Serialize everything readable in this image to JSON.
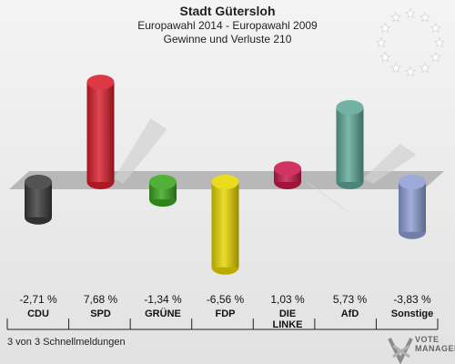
{
  "header": {
    "title": "Stadt Gütersloh",
    "subtitle1": "Europawahl 2014 - Europawahl 2009",
    "subtitle2": "Gewinne und Verluste 210"
  },
  "footer": {
    "status": "3 von 3 Schnellmeldungen",
    "logo_line1": "VOTE",
    "logo_line2": "MANAGER"
  },
  "chart_data": {
    "type": "bar",
    "categories": [
      "CDU",
      "SPD",
      "GRÜNE",
      "FDP",
      "DIE LINKE",
      "AfD",
      "Sonstige"
    ],
    "category_labels": [
      [
        "CDU"
      ],
      [
        "SPD"
      ],
      [
        "GRÜNE"
      ],
      [
        "FDP"
      ],
      [
        "DIE",
        "LINKE"
      ],
      [
        "AfD"
      ],
      [
        "Sonstige"
      ]
    ],
    "values": [
      -2.71,
      7.68,
      -1.34,
      -6.56,
      1.03,
      5.73,
      -3.83
    ],
    "value_labels": [
      "-2,71 %",
      "7,68 %",
      "-1,34 %",
      "-6,56 %",
      "1,03 %",
      "5,73 %",
      "-3,83 %"
    ],
    "colors": [
      "#3c3c3c",
      "#d81e2c",
      "#3aa51e",
      "#e8d600",
      "#c8194a",
      "#5fa898",
      "#8e9ed4"
    ],
    "ylim": [
      -7,
      8
    ],
    "grid": false
  }
}
